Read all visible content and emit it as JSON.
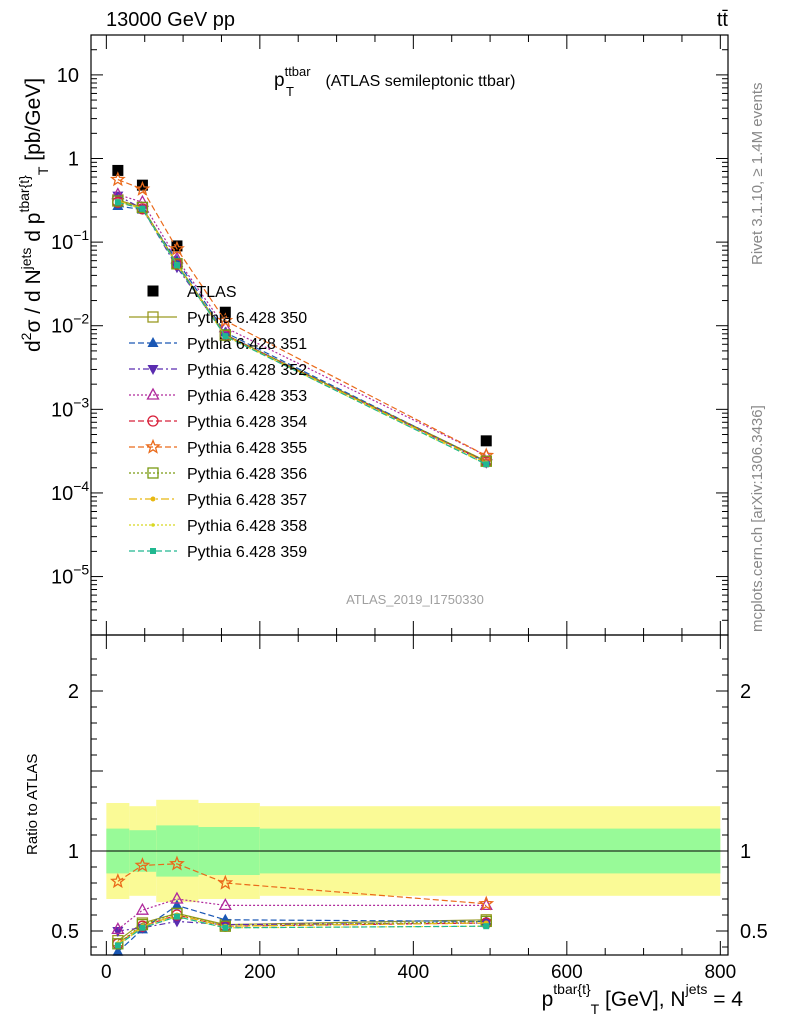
{
  "header": {
    "left": "13000 GeV pp",
    "right": "tt̄"
  },
  "plot_title": {
    "main": "p",
    "sup": "ttbar",
    "sub": "T",
    "rest": " (ATLAS semileptonic ttbar)"
  },
  "side_labels": {
    "rivet": "Rivet 3.1.10, ≥ 1.4M events",
    "mcplots": "mcplots.cern.ch [arXiv:1306.3436]"
  },
  "watermark": "ATLAS_2019_I1750330",
  "ylabel_top": "d²σ / d N^jets d p^tbar{t}_T [pb/GeV]",
  "ylabel_bottom": "Ratio to ATLAS",
  "xlabel": "p^tbar{t}_T [GeV], N^jets = 4",
  "colors": {
    "atlas": "#000000",
    "band_inner": "#98fa98",
    "band_outer": "#fafa96",
    "s350": "#9a9a22",
    "s351": "#1a57b4",
    "s352": "#5a2cb0",
    "s353": "#b02a9c",
    "s354": "#d8203a",
    "s355": "#ea6a1a",
    "s356": "#7a9a12",
    "s357": "#e8b810",
    "s358": "#d8d820",
    "s359": "#20b890"
  },
  "chart_data": [
    {
      "type": "scatter",
      "panel": "main",
      "xlim": [
        -20,
        810
      ],
      "ylim": [
        2e-06,
        30
      ],
      "ylog": true,
      "x": [
        15,
        47,
        92,
        155,
        495
      ],
      "yticks_major": [
        1e-05,
        0.0001,
        0.001,
        0.01,
        0.1,
        1,
        10
      ],
      "ytick_labels": [
        {
          "base": "10",
          "exp": "−5"
        },
        {
          "base": "10",
          "exp": "−4"
        },
        {
          "base": "10",
          "exp": "−3"
        },
        {
          "base": "10",
          "exp": "−2"
        },
        {
          "base": "10",
          "exp": "−1"
        },
        {
          "base": "1",
          "exp": ""
        },
        {
          "base": "10",
          "exp": ""
        }
      ],
      "series": [
        {
          "name": "ATLAS",
          "key": "atlas",
          "values": [
            0.72,
            0.48,
            0.09,
            0.0145,
            0.00042
          ]
        },
        {
          "name": "Pythia 6.428 350",
          "key": "s350",
          "values": [
            0.32,
            0.26,
            0.055,
            0.0078,
            0.00024
          ]
        },
        {
          "name": "Pythia 6.428 351",
          "key": "s351",
          "values": [
            0.27,
            0.245,
            0.06,
            0.0083,
            0.000235
          ]
        },
        {
          "name": "Pythia 6.428 352",
          "key": "s352",
          "values": [
            0.36,
            0.25,
            0.05,
            0.0078,
            0.00023
          ]
        },
        {
          "name": "Pythia 6.428 353",
          "key": "s353",
          "values": [
            0.37,
            0.3,
            0.063,
            0.0095,
            0.00028
          ]
        },
        {
          "name": "Pythia 6.428 354",
          "key": "s354",
          "values": [
            0.3,
            0.25,
            0.054,
            0.0077,
            0.000235
          ]
        },
        {
          "name": "Pythia 6.428 355",
          "key": "s355",
          "values": [
            0.56,
            0.43,
            0.083,
            0.0115,
            0.00028
          ]
        },
        {
          "name": "Pythia 6.428 356",
          "key": "s356",
          "values": [
            0.31,
            0.26,
            0.055,
            0.0077,
            0.00024
          ]
        },
        {
          "name": "Pythia 6.428 357",
          "key": "s357",
          "values": [
            0.31,
            0.255,
            0.054,
            0.0076,
            0.00023
          ]
        },
        {
          "name": "Pythia 6.428 358",
          "key": "s358",
          "values": [
            0.3,
            0.25,
            0.053,
            0.0075,
            0.00022
          ]
        },
        {
          "name": "Pythia 6.428 359",
          "key": "s359",
          "values": [
            0.3,
            0.25,
            0.053,
            0.0075,
            0.00022
          ]
        }
      ]
    },
    {
      "type": "line",
      "panel": "ratio",
      "xlim": [
        -20,
        810
      ],
      "ylim": [
        0.35,
        2.35
      ],
      "x": [
        15,
        47,
        92,
        155,
        495
      ],
      "xticks": [
        0,
        200,
        400,
        600,
        800
      ],
      "xtick_labels": [
        "0",
        "200",
        "400",
        "600",
        "800"
      ],
      "yticks_labeled": [
        0.5,
        1,
        2
      ],
      "ytick_labels": [
        "0.5",
        "1",
        "2"
      ],
      "bands": {
        "edges": [
          0,
          30,
          65,
          120,
          200,
          800
        ],
        "inner": [
          0.14,
          0.13,
          0.16,
          0.15,
          0.14
        ],
        "outer": [
          0.3,
          0.28,
          0.32,
          0.3,
          0.28
        ]
      },
      "series": [
        {
          "name": "Pythia 6.428 350",
          "key": "s350",
          "values": [
            0.44,
            0.55,
            0.61,
            0.54,
            0.57
          ]
        },
        {
          "name": "Pythia 6.428 351",
          "key": "s351",
          "values": [
            0.37,
            0.51,
            0.66,
            0.57,
            0.56
          ]
        },
        {
          "name": "Pythia 6.428 352",
          "key": "s352",
          "values": [
            0.5,
            0.52,
            0.56,
            0.54,
            0.55
          ]
        },
        {
          "name": "Pythia 6.428 353",
          "key": "s353",
          "values": [
            0.51,
            0.63,
            0.7,
            0.66,
            0.66
          ]
        },
        {
          "name": "Pythia 6.428 354",
          "key": "s354",
          "values": [
            0.42,
            0.53,
            0.6,
            0.53,
            0.55
          ]
        },
        {
          "name": "Pythia 6.428 355",
          "key": "s355",
          "values": [
            0.81,
            0.91,
            0.92,
            0.8,
            0.67
          ]
        },
        {
          "name": "Pythia 6.428 356",
          "key": "s356",
          "values": [
            0.42,
            0.54,
            0.61,
            0.53,
            0.56
          ]
        },
        {
          "name": "Pythia 6.428 357",
          "key": "s357",
          "values": [
            0.42,
            0.53,
            0.6,
            0.53,
            0.55
          ]
        },
        {
          "name": "Pythia 6.428 358",
          "key": "s358",
          "values": [
            0.41,
            0.52,
            0.59,
            0.52,
            0.53
          ]
        },
        {
          "name": "Pythia 6.428 359",
          "key": "s359",
          "values": [
            0.41,
            0.52,
            0.59,
            0.52,
            0.53
          ]
        }
      ]
    }
  ]
}
